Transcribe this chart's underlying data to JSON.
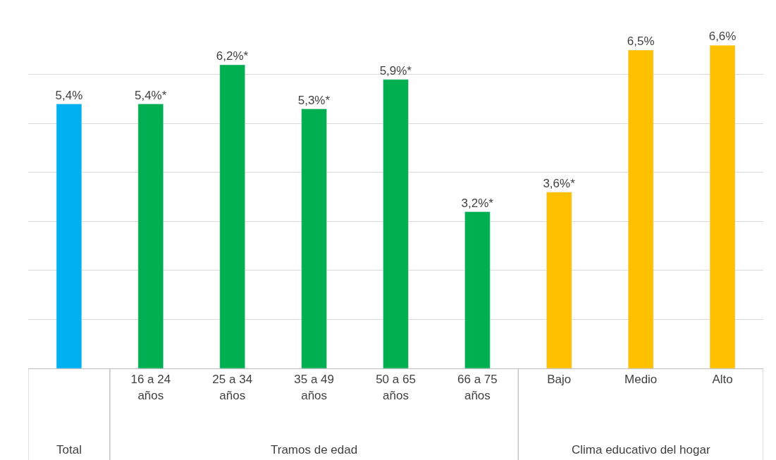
{
  "chart_data": {
    "type": "bar",
    "categories": [
      null,
      "16 a 24 años",
      "25 a 34 años",
      "35 a 49 años",
      "50 a 65 años",
      "66 a 75 años",
      "Bajo",
      "Medio",
      "Alto"
    ],
    "series": [
      {
        "color": "#00b0f0",
        "values": [
          5.4,
          null,
          null,
          null,
          null,
          null,
          null,
          null,
          null
        ],
        "value_labels": [
          "5,4%",
          null,
          null,
          null,
          null,
          null,
          null,
          null,
          null
        ]
      },
      {
        "color": "#00b050",
        "values": [
          null,
          5.4,
          6.2,
          5.3,
          5.9,
          3.2,
          null,
          null,
          null
        ],
        "value_labels": [
          null,
          "5,4%*",
          "6,2%*",
          "5,3%*",
          "5,9%*",
          "3,2%*",
          null,
          null,
          null
        ]
      },
      {
        "color": "#ffc000",
        "values": [
          null,
          null,
          null,
          null,
          null,
          null,
          3.6,
          6.5,
          6.6
        ],
        "value_labels": [
          null,
          null,
          null,
          null,
          null,
          null,
          "3,6%*",
          "6,5%",
          "6,6%"
        ]
      }
    ],
    "annotations": [
      "Total",
      "Tramos de edad",
      "Clima educativo del hogar"
    ],
    "grid": "y",
    "legend": false,
    "tick_labels": "x"
  }
}
